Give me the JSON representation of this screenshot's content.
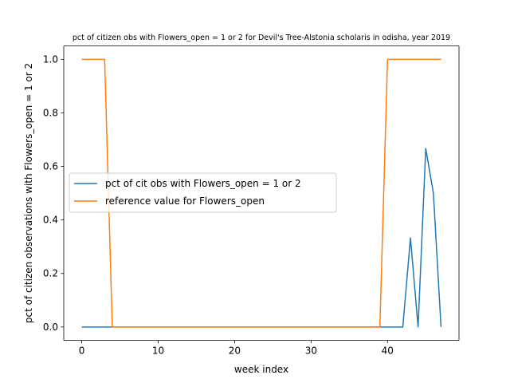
{
  "chart_data": {
    "type": "line",
    "title": "pct of citizen obs with Flowers_open = 1 or 2 for Devil's Tree-Alstonia scholaris in odisha, year 2019",
    "xlabel": "week index",
    "ylabel": "pct of citizen observations with Flowers_open = 1 or 2",
    "xlim": [
      -2.35,
      49.35
    ],
    "ylim": [
      -0.05,
      1.05
    ],
    "xticks": [
      0,
      10,
      20,
      30,
      40
    ],
    "yticks": [
      0.0,
      0.2,
      0.4,
      0.6,
      0.8,
      1.0
    ],
    "xtick_labels": [
      "0",
      "10",
      "20",
      "30",
      "40"
    ],
    "ytick_labels": [
      "0.0",
      "0.2",
      "0.4",
      "0.6",
      "0.8",
      "1.0"
    ],
    "grid": false,
    "legend_position": "center-left",
    "series": [
      {
        "name": "pct of cit obs with Flowers_open = 1 or 2",
        "color": "#1f77b4",
        "x": [
          0,
          1,
          2,
          3,
          4,
          5,
          6,
          7,
          8,
          9,
          10,
          11,
          12,
          13,
          14,
          15,
          16,
          17,
          18,
          19,
          20,
          21,
          22,
          23,
          24,
          25,
          26,
          27,
          28,
          29,
          30,
          31,
          32,
          33,
          34,
          35,
          36,
          37,
          38,
          39,
          40,
          41,
          42,
          43,
          44,
          45,
          46,
          47
        ],
        "values": [
          0,
          0,
          0,
          0,
          0,
          0,
          0,
          0,
          0,
          0,
          0,
          0,
          0,
          0,
          0,
          0,
          0,
          0,
          0,
          0,
          0,
          0,
          0,
          0,
          0,
          0,
          0,
          0,
          0,
          0,
          0,
          0,
          0,
          0,
          0,
          0,
          0,
          0,
          0,
          0,
          0,
          0,
          0,
          0.333,
          0,
          0.667,
          0.5,
          0
        ]
      },
      {
        "name": "reference value for Flowers_open",
        "color": "#ff7f0e",
        "x": [
          0,
          1,
          2,
          3,
          4,
          5,
          6,
          7,
          8,
          9,
          10,
          11,
          12,
          13,
          14,
          15,
          16,
          17,
          18,
          19,
          20,
          21,
          22,
          23,
          24,
          25,
          26,
          27,
          28,
          29,
          30,
          31,
          32,
          33,
          34,
          35,
          36,
          37,
          38,
          39,
          40,
          41,
          42,
          43,
          44,
          45,
          46,
          47
        ],
        "values": [
          1,
          1,
          1,
          1,
          0,
          0,
          0,
          0,
          0,
          0,
          0,
          0,
          0,
          0,
          0,
          0,
          0,
          0,
          0,
          0,
          0,
          0,
          0,
          0,
          0,
          0,
          0,
          0,
          0,
          0,
          0,
          0,
          0,
          0,
          0,
          0,
          0,
          0,
          0,
          0,
          1,
          1,
          1,
          1,
          1,
          1,
          1,
          1
        ]
      }
    ]
  }
}
